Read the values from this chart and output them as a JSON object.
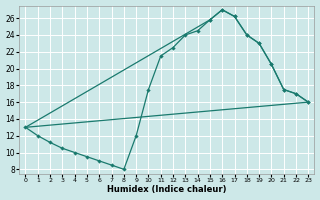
{
  "xlabel": "Humidex (Indice chaleur)",
  "bg_color": "#cde8e8",
  "grid_color": "#ffffff",
  "line_color": "#1a7a6e",
  "xlim": [
    -0.5,
    23.5
  ],
  "ylim": [
    7.5,
    27.5
  ],
  "xticks": [
    0,
    1,
    2,
    3,
    4,
    5,
    6,
    7,
    8,
    9,
    10,
    11,
    12,
    13,
    14,
    15,
    16,
    17,
    18,
    19,
    20,
    21,
    22,
    23
  ],
  "yticks": [
    8,
    10,
    12,
    14,
    16,
    18,
    20,
    22,
    24,
    26
  ],
  "curve1_x": [
    0,
    1,
    2,
    3,
    4,
    5,
    6,
    7,
    8,
    9,
    10,
    11,
    12,
    13,
    14,
    15,
    16,
    17,
    18,
    19,
    20,
    21,
    22,
    23
  ],
  "curve1_y": [
    13,
    12,
    11.2,
    10.5,
    10,
    9.5,
    9,
    8.5,
    8,
    12,
    17.5,
    21.5,
    22.5,
    24,
    24.5,
    25.8,
    27,
    26.2,
    24,
    23,
    20.5,
    17.5,
    17,
    16
  ],
  "curve2_x": [
    0,
    15,
    16,
    17,
    18,
    19,
    20,
    21,
    22,
    23
  ],
  "curve2_y": [
    13,
    25.8,
    27,
    26.2,
    24,
    23,
    20.5,
    17.5,
    17,
    16
  ],
  "curve3_x": [
    0,
    23
  ],
  "curve3_y": [
    13,
    16
  ],
  "markers1_x": [
    0,
    1,
    2,
    3,
    4,
    5,
    6,
    7,
    8,
    9,
    10,
    11,
    12,
    13,
    14,
    15,
    16,
    17,
    18,
    19,
    20,
    21,
    22,
    23
  ],
  "markers1_y": [
    13,
    12,
    11.2,
    10.5,
    10,
    9.5,
    9,
    8.5,
    8,
    12,
    17.5,
    21.5,
    22.5,
    24,
    24.5,
    25.8,
    27,
    26.2,
    24,
    23,
    20.5,
    17.5,
    17,
    16
  ],
  "markers2_x": [
    15,
    16,
    17,
    18,
    19,
    20,
    21,
    22,
    23
  ],
  "markers2_y": [
    25.8,
    27,
    26.2,
    24,
    23,
    20.5,
    17.5,
    17,
    16
  ]
}
